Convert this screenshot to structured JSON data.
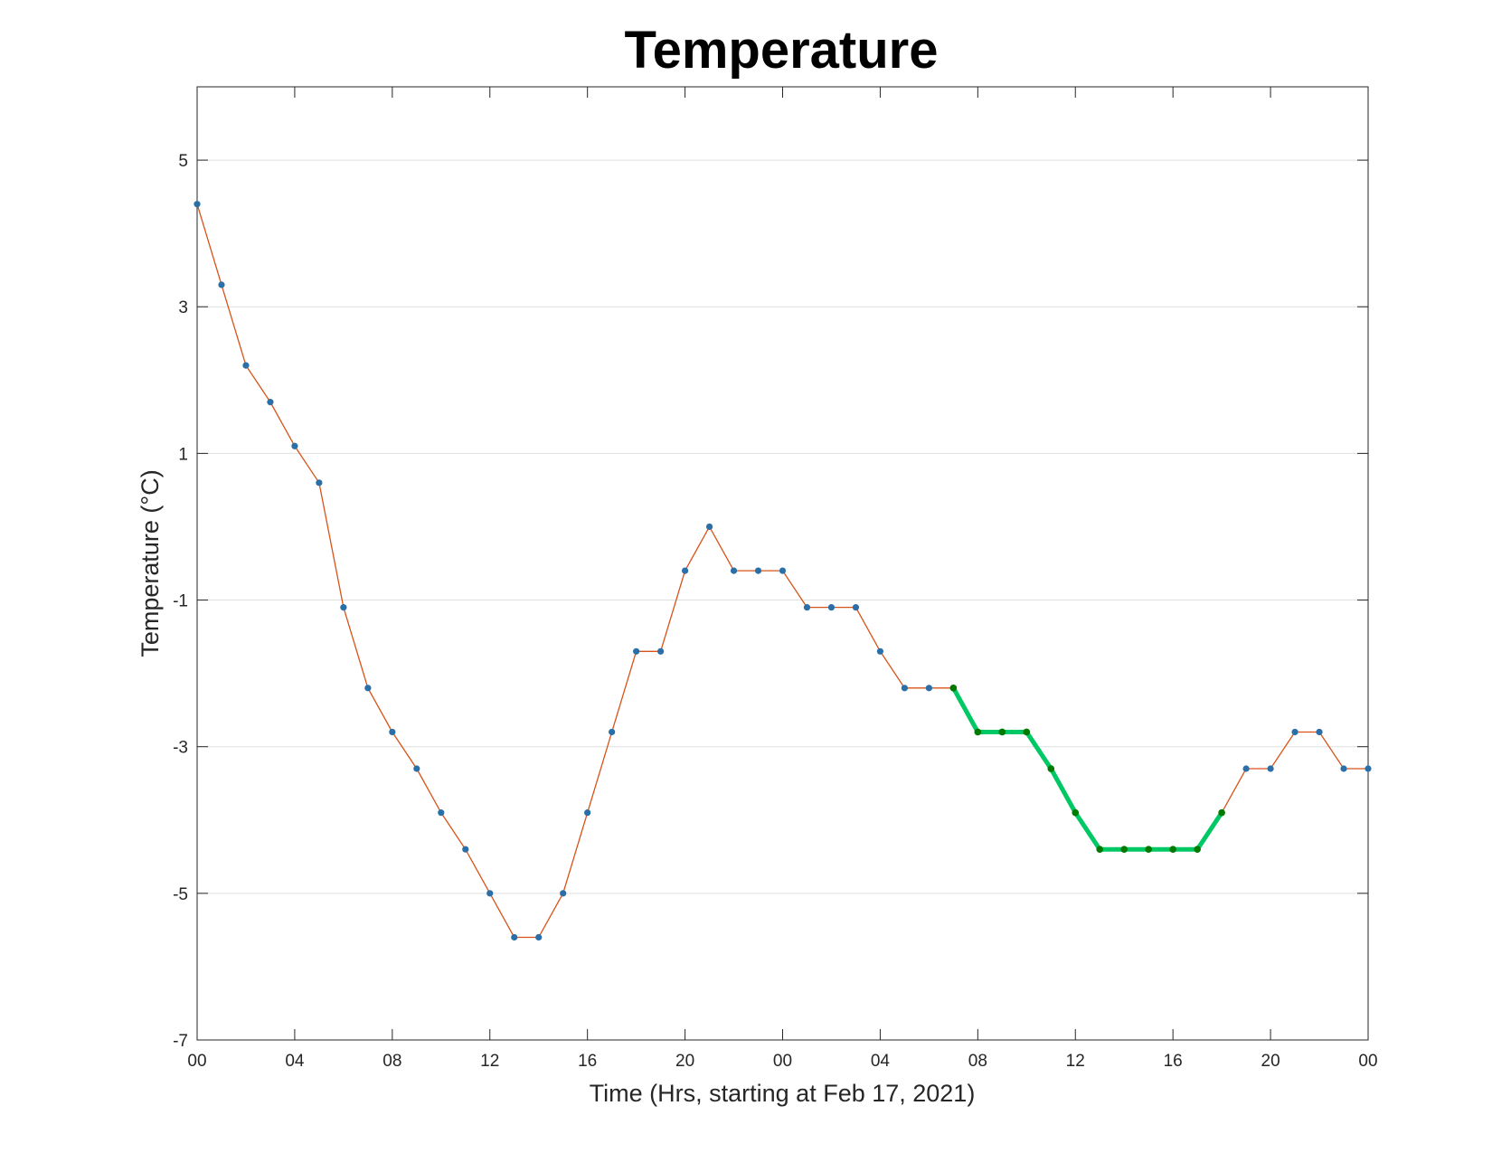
{
  "chart_data": {
    "type": "line",
    "title": "Temperature",
    "xlabel": "Time (Hrs, starting at Feb 17, 2021)",
    "ylabel": "Temperature (°C)",
    "x_unit": "hours",
    "x_range": [
      0,
      48
    ],
    "ylim": [
      -7,
      6
    ],
    "grid": "horizontal",
    "x_ticks": [
      {
        "hour": 0,
        "label": "00"
      },
      {
        "hour": 4,
        "label": "04"
      },
      {
        "hour": 8,
        "label": "08"
      },
      {
        "hour": 12,
        "label": "12"
      },
      {
        "hour": 16,
        "label": "16"
      },
      {
        "hour": 20,
        "label": "20"
      },
      {
        "hour": 24,
        "label": "00"
      },
      {
        "hour": 28,
        "label": "04"
      },
      {
        "hour": 32,
        "label": "08"
      },
      {
        "hour": 36,
        "label": "12"
      },
      {
        "hour": 40,
        "label": "16"
      },
      {
        "hour": 44,
        "label": "20"
      },
      {
        "hour": 48,
        "label": "00"
      }
    ],
    "y_ticks": [
      5,
      3,
      1,
      -1,
      -3,
      -5,
      -7
    ],
    "colors": {
      "line": "#d95319",
      "marker": "#2a6fa8",
      "highlight_line": "#00c864",
      "highlight_marker": "#007a00",
      "grid": "#e0e0e0",
      "axis": "#262626"
    },
    "series": [
      {
        "x": [
          0,
          1,
          2,
          3,
          4,
          5,
          6,
          7,
          8,
          9,
          10,
          11,
          12,
          13,
          14,
          15,
          16,
          17,
          18,
          19,
          20,
          21,
          22,
          23,
          24,
          25,
          26,
          27,
          28,
          29,
          30,
          31,
          32,
          33,
          34,
          35,
          36,
          37,
          38,
          39,
          40,
          41,
          42,
          43,
          44,
          45,
          46,
          47,
          48
        ],
        "values": [
          4.4,
          3.3,
          2.2,
          1.7,
          1.1,
          0.6,
          -1.1,
          -2.2,
          -2.8,
          -3.3,
          -3.9,
          -4.4,
          -5.0,
          -5.6,
          -5.6,
          -5.0,
          -3.9,
          -2.8,
          -1.7,
          -1.7,
          -0.6,
          0.0,
          -0.6,
          -0.6,
          -0.6,
          -1.1,
          -1.1,
          -1.1,
          -1.7,
          -2.2,
          -2.2,
          -2.2,
          -2.8,
          -2.8,
          -2.8,
          -3.3,
          -3.9,
          -4.4,
          -4.4,
          -4.4,
          -4.4,
          -4.4,
          -3.9,
          -3.3,
          -3.3,
          -2.8,
          -2.8,
          -3.3,
          -3.3
        ]
      }
    ],
    "highlight": {
      "x": [
        31,
        32,
        33,
        34,
        35,
        36,
        37,
        38,
        39,
        40,
        41,
        42
      ],
      "values": [
        -2.2,
        -2.8,
        -2.8,
        -2.8,
        -3.3,
        -3.9,
        -4.4,
        -4.4,
        -4.4,
        -4.4,
        -4.4,
        -3.9
      ]
    }
  }
}
